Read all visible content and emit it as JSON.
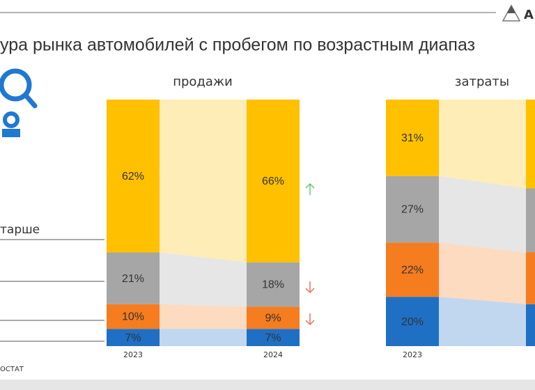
{
  "header": {
    "title": "ура рынка автомобилей с пробегом по возрастным диапаз",
    "logo": "А"
  },
  "legend_fragment": "тарше",
  "source": "ОСТАТ",
  "chart_data": [
    {
      "type": "bar",
      "stacked": true,
      "title": "продажи",
      "categories": [
        "2023",
        "2024"
      ],
      "ylim": [
        0,
        100
      ],
      "series": [
        {
          "color": "#1f6fc5",
          "values": [
            7,
            7
          ],
          "value_labels": [
            "7%",
            "7%"
          ]
        },
        {
          "color": "#f57c1f",
          "values": [
            10,
            9
          ],
          "value_labels": [
            "10%",
            "9%"
          ]
        },
        {
          "color": "#a6a6a6",
          "values": [
            21,
            18
          ],
          "value_labels": [
            "21%",
            "18%"
          ]
        },
        {
          "color": "#ffc000",
          "values": [
            62,
            66
          ],
          "value_labels": [
            "62%",
            "66%"
          ]
        }
      ]
    },
    {
      "type": "bar",
      "stacked": true,
      "title": "затраты",
      "categories": [
        "2023",
        null
      ],
      "ylim": [
        0,
        100
      ],
      "series": [
        {
          "color": "#1f6fc5",
          "values": [
            20,
            17
          ],
          "value_labels": [
            "20%",
            null
          ]
        },
        {
          "color": "#f57c1f",
          "values": [
            22,
            21
          ],
          "value_labels": [
            "22%",
            null
          ]
        },
        {
          "color": "#a6a6a6",
          "values": [
            27,
            26
          ],
          "value_labels": [
            "27%",
            null
          ]
        },
        {
          "color": "#ffc000",
          "values": [
            31,
            36
          ],
          "value_labels": [
            "31%",
            null
          ]
        }
      ]
    }
  ]
}
